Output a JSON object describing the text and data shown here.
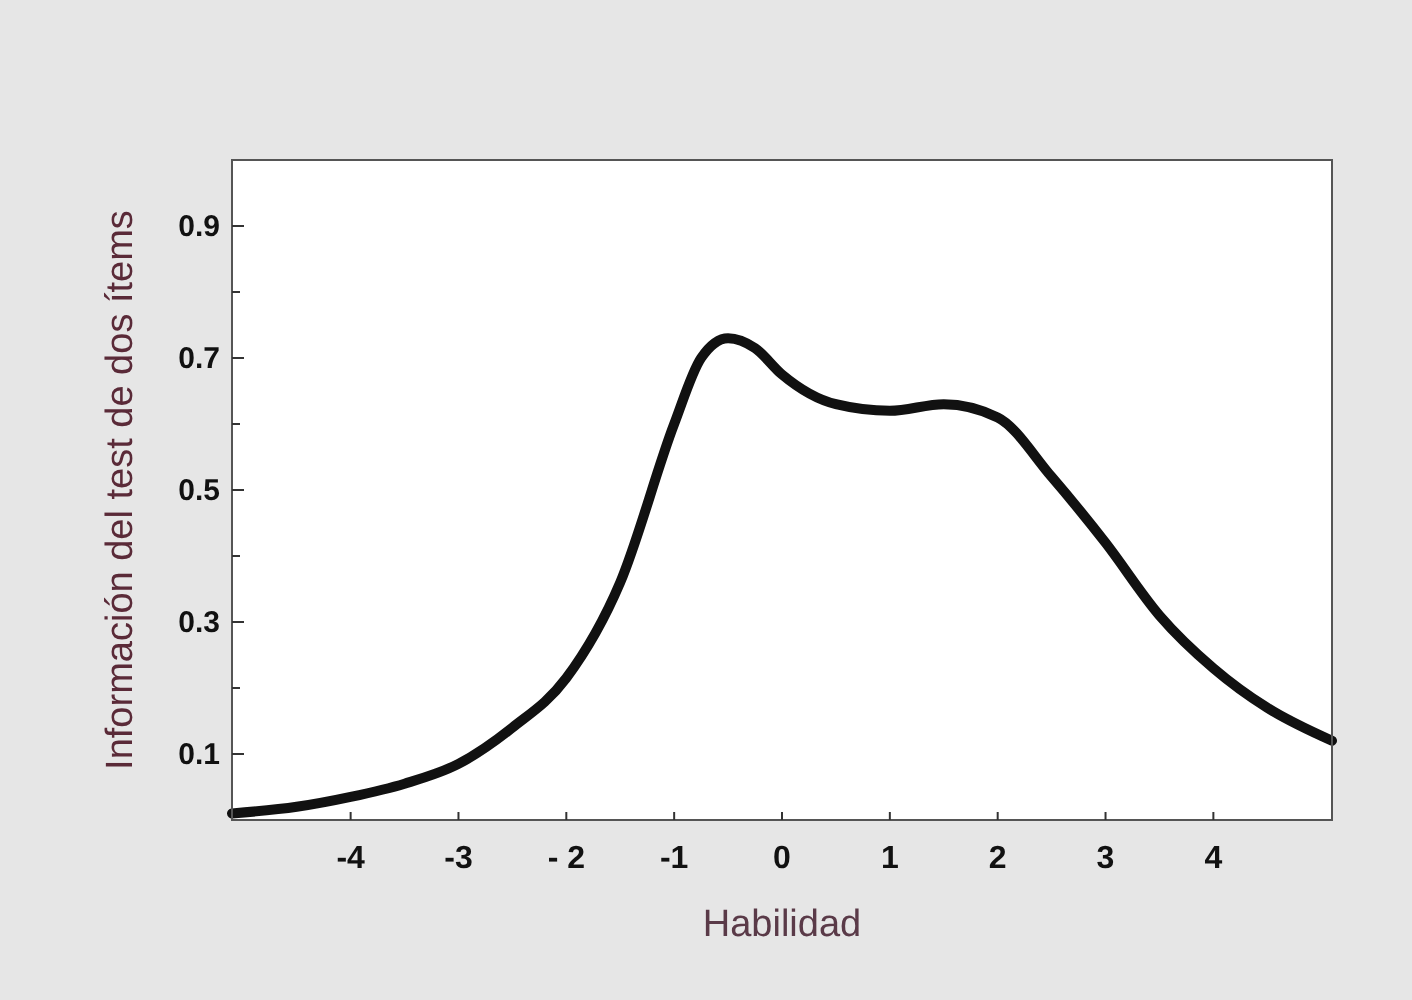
{
  "chart_data": {
    "type": "line",
    "xlabel": "Habilidad",
    "ylabel": "Información del test de dos ítems",
    "xlim": [
      -5.1,
      5.1
    ],
    "ylim": [
      0,
      1
    ],
    "xticks": [
      -4,
      -3,
      {
        "value": -2,
        "label": "- 2"
      },
      -1,
      0,
      1,
      2,
      3,
      4
    ],
    "yticks": [
      0.1,
      {
        "value": 0.2,
        "label": null
      },
      0.3,
      {
        "value": 0.4,
        "label": null
      },
      0.5,
      {
        "value": 0.6,
        "label": null
      },
      0.7,
      {
        "value": 0.8,
        "label": null
      },
      0.9
    ],
    "marker": "none",
    "line_style": "solid",
    "series": [
      {
        "color": "#111111",
        "x": [
          -5.1,
          -4.5,
          -4,
          -3.5,
          -3,
          -2.5,
          -2,
          -1.5,
          -1,
          -0.75,
          -0.5,
          -0.25,
          0,
          0.5,
          1,
          1.5,
          2,
          2.5,
          3,
          3.5,
          4,
          4.5,
          5.1
        ],
        "values": [
          0.01,
          0.02,
          0.035,
          0.055,
          0.085,
          0.14,
          0.215,
          0.36,
          0.6,
          0.7,
          0.73,
          0.715,
          0.675,
          0.63,
          0.62,
          0.63,
          0.61,
          0.52,
          0.42,
          0.31,
          0.23,
          0.17,
          0.12
        ]
      }
    ]
  }
}
